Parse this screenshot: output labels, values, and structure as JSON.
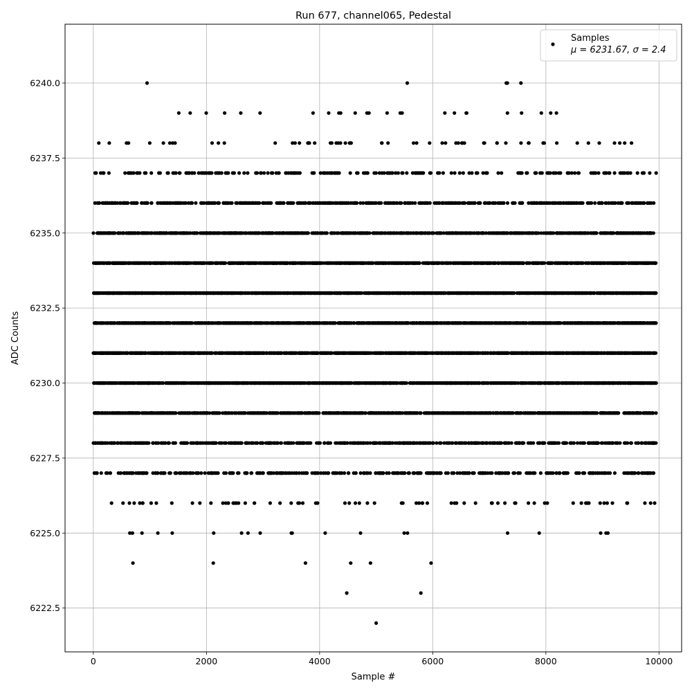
{
  "chart_data": {
    "type": "scatter",
    "title": "Run 677, channel065, Pedestal",
    "xlabel": "Sample #",
    "ylabel": "ADC Counts",
    "xlim": [
      -500,
      10400
    ],
    "ylim": [
      6221.04,
      6241.96
    ],
    "x_ticks": [
      0,
      2000,
      4000,
      6000,
      8000,
      10000
    ],
    "x_tick_labels": [
      "0",
      "2000",
      "4000",
      "6000",
      "8000",
      "10000"
    ],
    "y_ticks": [
      6222.5,
      6225.0,
      6227.5,
      6230.0,
      6232.5,
      6235.0,
      6237.5,
      6240.0
    ],
    "y_tick_labels": [
      "6222.5",
      "6225.0",
      "6227.5",
      "6230.0",
      "6232.5",
      "6235.0",
      "6237.5",
      "6240.0"
    ],
    "grid": true,
    "legend_position": "top-right",
    "series": [
      {
        "name": "Samples",
        "stats_label": "μ = 6231.67, σ = 2.4",
        "color": "#000000",
        "x_range": [
          0,
          9950
        ],
        "level_counts": {
          "6222": 1,
          "6223": 2,
          "6224": 6,
          "6225": 20,
          "6226": 75,
          "6227": 350,
          "6228": 550,
          "6229": 900,
          "6230": 1150,
          "6231": 1450,
          "6232": 1450,
          "6233": 1250,
          "6234": 1000,
          "6235": 800,
          "6236": 500,
          "6237": 220,
          "6238": 60,
          "6239": 25,
          "6240": 5
        },
        "notable_points": [
          {
            "x": 5000,
            "y": 6222
          },
          {
            "x": 4480,
            "y": 6223
          },
          {
            "x": 5790,
            "y": 6223
          },
          {
            "x": 700,
            "y": 6224
          },
          {
            "x": 2120,
            "y": 6224
          },
          {
            "x": 3750,
            "y": 6224
          },
          {
            "x": 4550,
            "y": 6224
          },
          {
            "x": 4900,
            "y": 6224
          },
          {
            "x": 5970,
            "y": 6224
          },
          {
            "x": 950,
            "y": 6240
          },
          {
            "x": 5550,
            "y": 6240
          },
          {
            "x": 7300,
            "y": 6240
          },
          {
            "x": 7320,
            "y": 6240
          },
          {
            "x": 7560,
            "y": 6240
          }
        ]
      }
    ]
  }
}
